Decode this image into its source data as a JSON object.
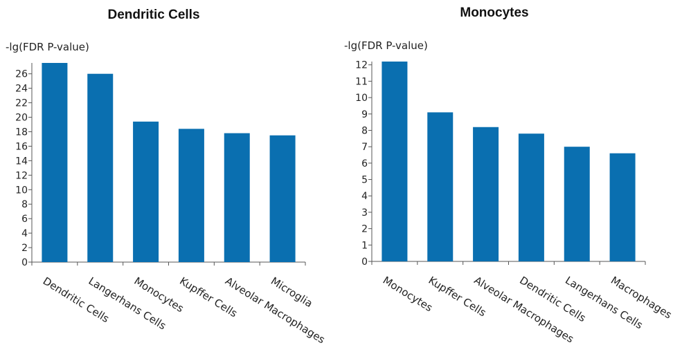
{
  "chart_data": [
    {
      "type": "bar",
      "title": "Dendritic Cells",
      "ylabel": "-lg(FDR P-value)",
      "categories": [
        "Dendritic Cells",
        "Langerhans Cells",
        "Monocytes",
        "Kupffer Cells",
        "Alveolar Macrophages",
        "Microglia"
      ],
      "values": [
        27.5,
        26.0,
        19.4,
        18.4,
        17.8,
        17.5
      ],
      "ylim": [
        0,
        27.5
      ],
      "yticks": [
        0,
        2,
        4,
        6,
        8,
        10,
        12,
        14,
        16,
        18,
        20,
        22,
        24,
        26
      ],
      "bar_color": "#0a6fb0",
      "grid": false,
      "legend": "none"
    },
    {
      "type": "bar",
      "title": "Monocytes",
      "ylabel": "-lg(FDR P-value)",
      "categories": [
        "Monocytes",
        "Kupffer Cells",
        "Alveolar Macrophages",
        "Dendritic Cells",
        "Langerhans Cells",
        "Macrophages"
      ],
      "values": [
        12.2,
        9.1,
        8.2,
        7.8,
        7.0,
        6.6
      ],
      "ylim": [
        0,
        12.2
      ],
      "yticks": [
        0,
        1,
        2,
        3,
        4,
        5,
        6,
        7,
        8,
        9,
        10,
        11,
        12
      ],
      "bar_color": "#0a6fb0",
      "grid": false,
      "legend": "none"
    }
  ]
}
